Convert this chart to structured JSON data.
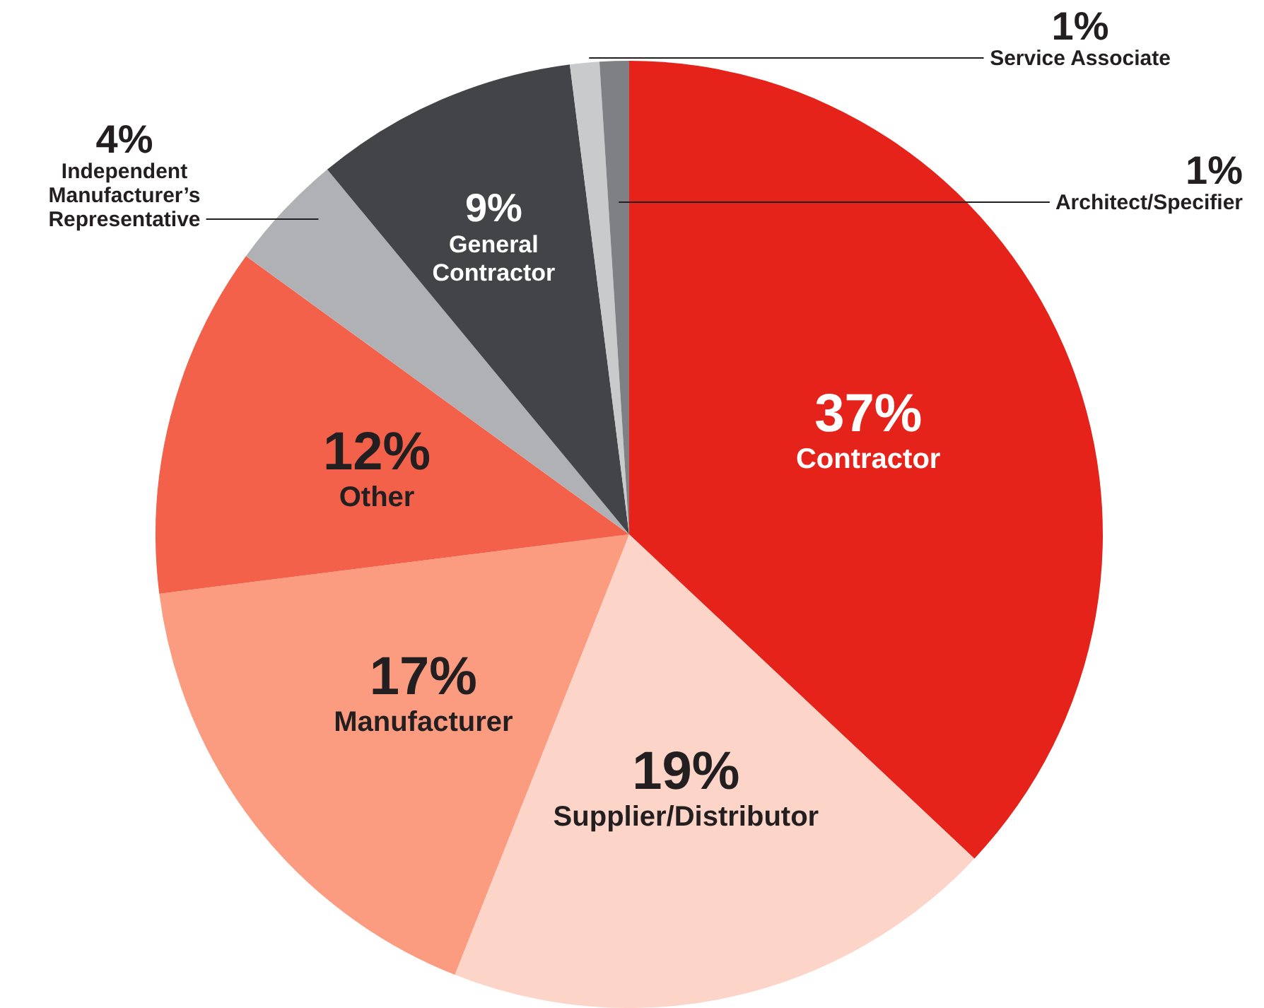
{
  "chart_data": {
    "type": "pie",
    "categories": [
      "Contractor",
      "Supplier/Distributor",
      "Manufacturer",
      "Other",
      "Independent Manufacturer’s Representative",
      "General Contractor",
      "Service Associate",
      "Architect/Specifier"
    ],
    "values": [
      37,
      19,
      17,
      12,
      4,
      9,
      1,
      1
    ],
    "colors": [
      "#e5231b",
      "#fdd5c8",
      "#fb9b80",
      "#f4614a",
      "#b0b1b5",
      "#434447",
      "#c9cacc",
      "#7f8083"
    ],
    "value_labels": [
      "37%",
      "19%",
      "17%",
      "12%",
      "4%",
      "9%",
      "1%",
      "1%"
    ],
    "legend": false
  }
}
